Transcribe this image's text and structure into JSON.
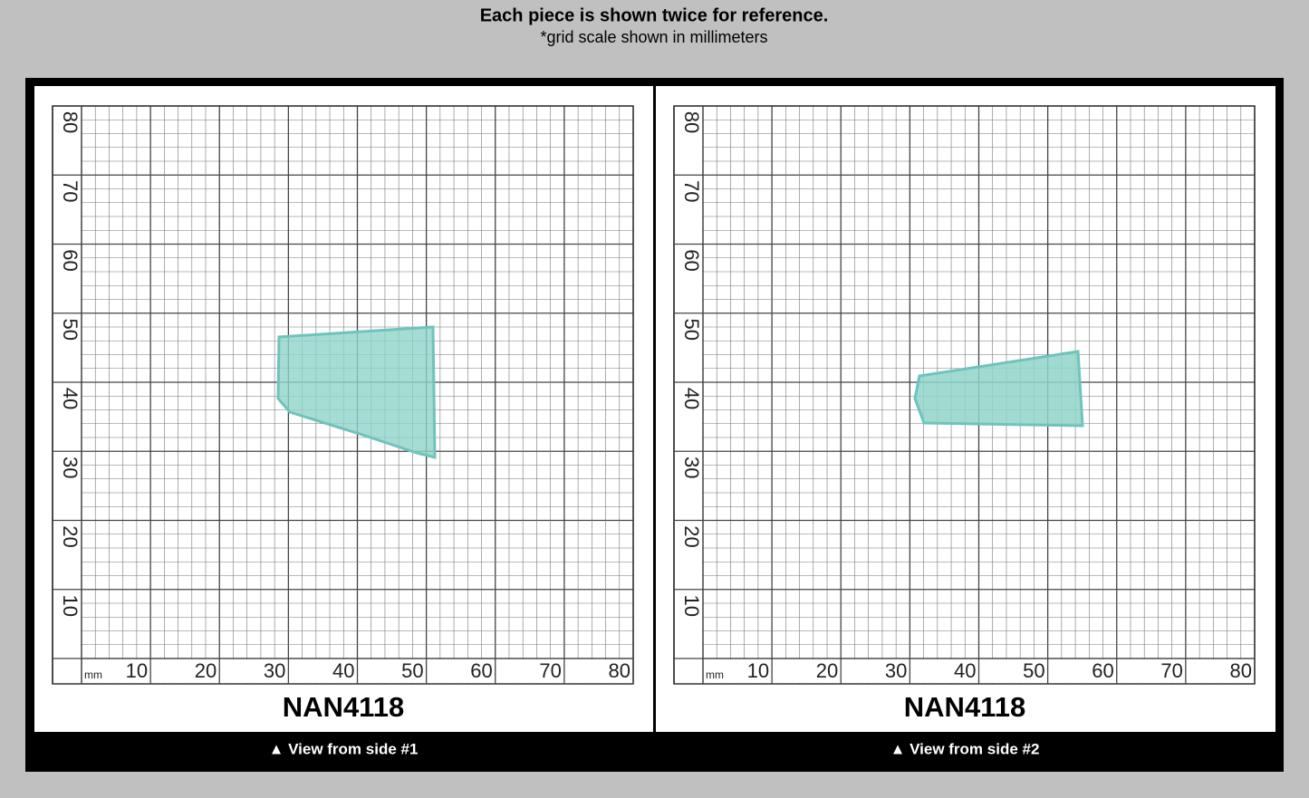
{
  "header": {
    "title": "Each piece is shown twice for reference.",
    "subtitle": "*grid scale shown in millimeters"
  },
  "panels": [
    {
      "code": "NAN4118",
      "caption": "▲ View from side #1",
      "unit": "mm",
      "x_labels": [
        "10",
        "20",
        "30",
        "40",
        "50",
        "60",
        "70",
        "80"
      ],
      "y_labels": [
        "10",
        "20",
        "30",
        "40",
        "50",
        "60",
        "70",
        "80"
      ]
    },
    {
      "code": "NAN4118",
      "caption": "▲ View from side #2",
      "unit": "mm",
      "x_labels": [
        "10",
        "20",
        "30",
        "40",
        "50",
        "60",
        "70",
        "80"
      ],
      "y_labels": [
        "10",
        "20",
        "30",
        "40",
        "50",
        "60",
        "70",
        "80"
      ]
    }
  ]
}
